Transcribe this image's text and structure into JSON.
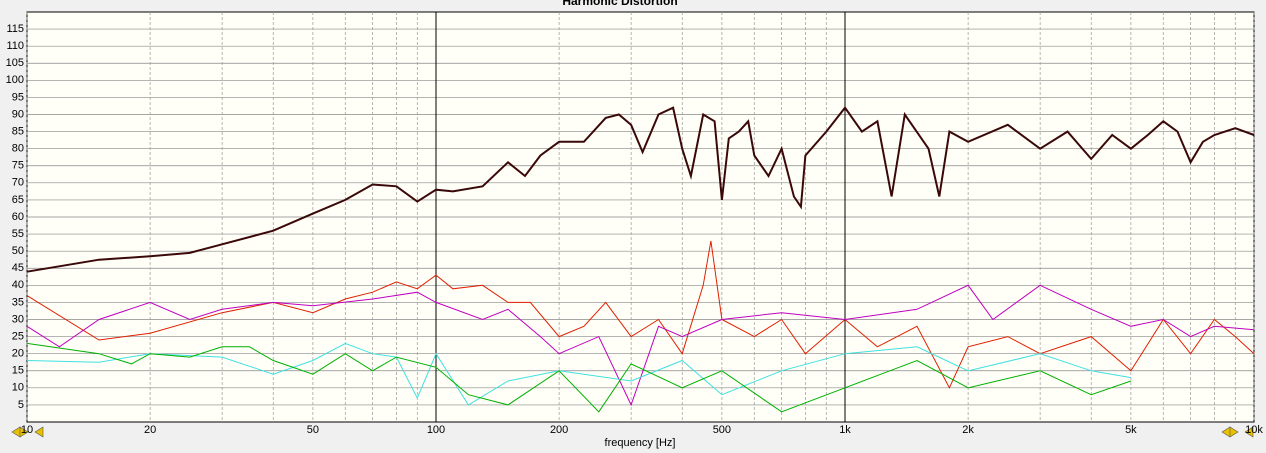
{
  "chart_data": {
    "type": "line",
    "title": "Harmonic Distortion",
    "xlabel": "frequency [Hz]",
    "xscale": "log",
    "xlim": [
      10,
      10000
    ],
    "ylim": [
      0,
      120
    ],
    "xticks": [
      10,
      20,
      50,
      100,
      200,
      500,
      {
        "value": 1000,
        "label": "1k"
      },
      {
        "value": 2000,
        "label": "2k"
      },
      {
        "value": 5000,
        "label": "5k"
      },
      {
        "value": 10000,
        "label": "10k"
      }
    ],
    "xgrid_minor": [
      30,
      40,
      60,
      70,
      80,
      90,
      300,
      400,
      600,
      700,
      800,
      900,
      3000,
      4000,
      6000,
      7000,
      8000,
      9000
    ],
    "xgrid_major": [
      100,
      1000
    ],
    "yticks": [
      5,
      10,
      15,
      20,
      25,
      30,
      35,
      40,
      45,
      50,
      55,
      60,
      65,
      70,
      75,
      80,
      85,
      90,
      95,
      100,
      105,
      110,
      115
    ],
    "grid": true,
    "series": [
      {
        "color": "#3a0808",
        "x": [
          10,
          15,
          20,
          25,
          30,
          40,
          50,
          60,
          70,
          80,
          90,
          100,
          110,
          130,
          150,
          165,
          180,
          200,
          230,
          260,
          280,
          300,
          320,
          350,
          380,
          400,
          420,
          450,
          480,
          500,
          520,
          550,
          580,
          600,
          650,
          700,
          750,
          780,
          800,
          900,
          1000,
          1100,
          1200,
          1300,
          1400,
          1600,
          1700,
          1800,
          2000,
          2500,
          3000,
          3500,
          4000,
          4500,
          5000,
          5500,
          6000,
          6500,
          7000,
          7500,
          8000,
          9000,
          10000
        ],
        "values": [
          44,
          47.5,
          48.5,
          49.5,
          52,
          56,
          61,
          65,
          69.5,
          69,
          64.5,
          68,
          67.5,
          69,
          76,
          72,
          78,
          82,
          82,
          89,
          90,
          87,
          79,
          90,
          92,
          80,
          72,
          90,
          88,
          65,
          83,
          85,
          88,
          78,
          72,
          80,
          66,
          63,
          78,
          85,
          92,
          85,
          88,
          66,
          90,
          80,
          66,
          85,
          82,
          87,
          80,
          85,
          77,
          84,
          80,
          84,
          88,
          85,
          76,
          82,
          84,
          86,
          84
        ]
      },
      {
        "color": "#e02000",
        "x": [
          10,
          15,
          20,
          30,
          40,
          50,
          60,
          70,
          80,
          90,
          100,
          110,
          130,
          150,
          170,
          200,
          230,
          260,
          300,
          350,
          400,
          450,
          470,
          500,
          600,
          700,
          800,
          1000,
          1200,
          1500,
          1800,
          2000,
          2500,
          3000,
          4000,
          5000,
          6000,
          7000,
          8000,
          9000,
          10000
        ],
        "values": [
          37,
          24,
          26,
          32,
          35,
          32,
          36,
          38,
          41,
          39,
          43,
          39,
          40,
          35,
          35,
          25,
          28,
          35,
          25,
          30,
          20,
          40,
          53,
          30,
          25,
          30,
          20,
          30,
          22,
          28,
          10,
          22,
          25,
          20,
          25,
          15,
          30,
          20,
          30,
          25,
          20
        ]
      },
      {
        "color": "#c000c0",
        "x": [
          10,
          12,
          15,
          20,
          25,
          30,
          40,
          50,
          70,
          90,
          100,
          130,
          150,
          180,
          200,
          250,
          300,
          350,
          400,
          500,
          700,
          1000,
          1500,
          2000,
          2300,
          3000,
          4000,
          5000,
          6000,
          7000,
          8000,
          10000
        ],
        "values": [
          28,
          22,
          30,
          35,
          30,
          33,
          35,
          34,
          36,
          38,
          35,
          30,
          33,
          25,
          20,
          25,
          5,
          28,
          25,
          30,
          32,
          30,
          33,
          40,
          30,
          40,
          33,
          28,
          30,
          25,
          28,
          27
        ]
      },
      {
        "color": "#40e0e0",
        "x": [
          10,
          15,
          20,
          30,
          40,
          50,
          60,
          70,
          80,
          90,
          100,
          120,
          150,
          200,
          300,
          400,
          500,
          700,
          1000,
          1500,
          2000,
          3000,
          4000,
          5000
        ],
        "values": [
          18,
          17.5,
          20,
          19,
          14,
          18,
          23,
          20,
          19,
          7,
          20,
          5,
          12,
          15,
          12,
          18,
          8,
          15,
          20,
          22,
          15,
          20,
          15,
          13
        ]
      },
      {
        "color": "#00b000",
        "x": [
          10,
          15,
          18,
          20,
          25,
          30,
          35,
          40,
          50,
          60,
          70,
          80,
          100,
          120,
          150,
          200,
          250,
          300,
          400,
          500,
          700,
          1000,
          1500,
          2000,
          3000,
          4000,
          5000
        ],
        "values": [
          23,
          20,
          17,
          20,
          19,
          22,
          22,
          18,
          14,
          20,
          15,
          19,
          16,
          8,
          5,
          15,
          3,
          17,
          10,
          15,
          3,
          10,
          18,
          10,
          15,
          8,
          12
        ]
      }
    ]
  }
}
